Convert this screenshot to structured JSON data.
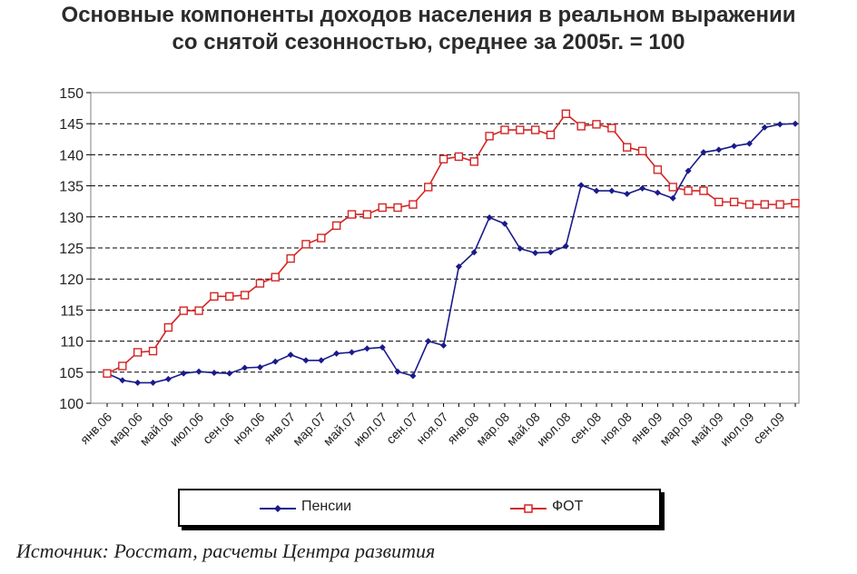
{
  "title_line1": "Основные компоненты доходов населения в реальном выражении",
  "title_line2": "со снятой сезонностью, среднее за 2005г. = 100",
  "source": "Источник: Росстат, расчеты Центра развития",
  "colors": {
    "pension": "#1a1a8c",
    "fot": "#d42424",
    "grid": "#000000"
  },
  "chart_data": {
    "type": "line",
    "ylim": [
      100,
      150
    ],
    "yticks": [
      100,
      105,
      110,
      115,
      120,
      125,
      130,
      135,
      140,
      145,
      150
    ],
    "categories": [
      "янв.06",
      "фев.06",
      "мар.06",
      "апр.06",
      "май.06",
      "июн.06",
      "июл.06",
      "авг.06",
      "сен.06",
      "окт.06",
      "ноя.06",
      "дек.06",
      "янв.07",
      "фев.07",
      "мар.07",
      "апр.07",
      "май.07",
      "июн.07",
      "июл.07",
      "авг.07",
      "сен.07",
      "окт.07",
      "ноя.07",
      "дек.07",
      "янв.08",
      "фев.08",
      "мар.08",
      "апр.08",
      "май.08",
      "июн.08",
      "июл.08",
      "авг.08",
      "сен.08",
      "окт.08",
      "ноя.08",
      "дек.08",
      "янв.09",
      "фев.09",
      "мар.09",
      "апр.09",
      "май.09",
      "июн.09",
      "июл.09",
      "авг.09",
      "сен.09",
      "окт.09"
    ],
    "xtick_labels": [
      "янв.06",
      "мар.06",
      "май.06",
      "июл.06",
      "сен.06",
      "ноя.06",
      "янв.07",
      "мар.07",
      "май.07",
      "июл.07",
      "сен.07",
      "ноя.07",
      "янв.08",
      "мар.08",
      "май.08",
      "июл.08",
      "сен.08",
      "ноя.08",
      "янв.09",
      "мар.09",
      "май.09",
      "июл.09",
      "сен.09"
    ],
    "grid": true,
    "legend_position": "bottom",
    "series": [
      {
        "name": "Пенсии",
        "marker": "diamond",
        "values": [
          104.8,
          103.7,
          103.3,
          103.3,
          103.9,
          104.8,
          105.1,
          104.9,
          104.8,
          105.7,
          105.8,
          106.7,
          107.8,
          106.9,
          106.9,
          108.0,
          108.2,
          108.8,
          109.0,
          105.1,
          104.4,
          110.0,
          109.3,
          122.0,
          124.3,
          129.9,
          128.9,
          124.9,
          124.2,
          124.3,
          125.3,
          135.1,
          134.2,
          134.2,
          133.7,
          134.6,
          133.9,
          133.0,
          137.4,
          140.4,
          140.8,
          141.4,
          141.8,
          144.4,
          144.9,
          145.0
        ]
      },
      {
        "name": "ФОТ",
        "marker": "square",
        "values": [
          104.8,
          106.0,
          108.2,
          108.4,
          112.2,
          114.9,
          114.9,
          117.2,
          117.2,
          117.4,
          119.3,
          120.3,
          123.3,
          125.6,
          126.6,
          128.6,
          130.4,
          130.4,
          131.5,
          131.5,
          132.0,
          134.8,
          139.3,
          139.7,
          138.9,
          143.0,
          144.0,
          144.0,
          144.0,
          143.2,
          146.6,
          144.6,
          144.9,
          144.3,
          141.2,
          140.6,
          137.6,
          134.8,
          134.2,
          134.2,
          132.4,
          132.4,
          132.0,
          132.0,
          132.0,
          132.2
        ]
      }
    ]
  }
}
